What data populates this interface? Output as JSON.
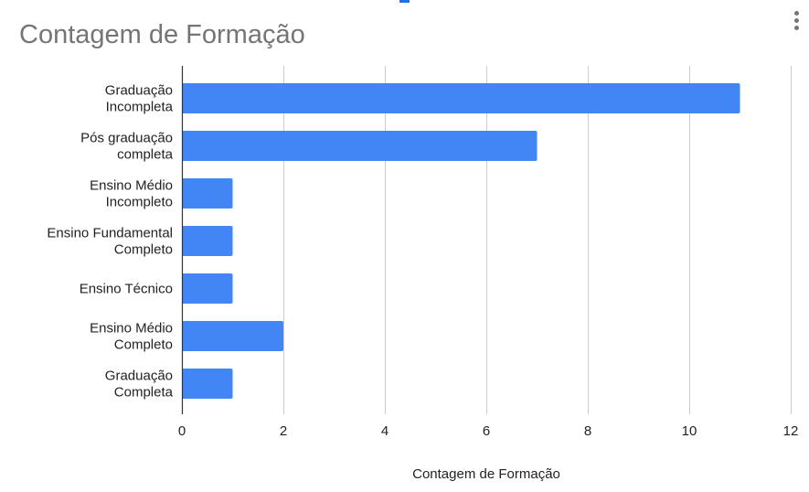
{
  "chart_data": {
    "type": "bar",
    "orientation": "horizontal",
    "title": "Contagem de Formação",
    "xlabel": "Contagem de Formação",
    "ylabel": "",
    "categories": [
      [
        "Graduação",
        "Incompleta"
      ],
      [
        "Pós graduação",
        "completa"
      ],
      [
        "Ensino Médio",
        "Incompleto"
      ],
      [
        "Ensino Fundamental",
        "Completo"
      ],
      [
        "Ensino Técnico"
      ],
      [
        "Ensino Médio",
        "Completo"
      ],
      [
        "Graduação",
        "Completa"
      ]
    ],
    "values": [
      11,
      7,
      1,
      1,
      1,
      2,
      1
    ],
    "xlim": [
      0,
      12
    ],
    "xticks": [
      "0",
      "2",
      "4",
      "6",
      "8",
      "10",
      "12"
    ],
    "grid": true,
    "bar_color": "#4285f4",
    "gridline_color": "#cccccc",
    "axis_color": "#333333"
  },
  "colors": {
    "title": "#757575",
    "text": "#222222",
    "accent": "#1a73e8"
  },
  "icons": {
    "menu": "more-vert-icon"
  }
}
